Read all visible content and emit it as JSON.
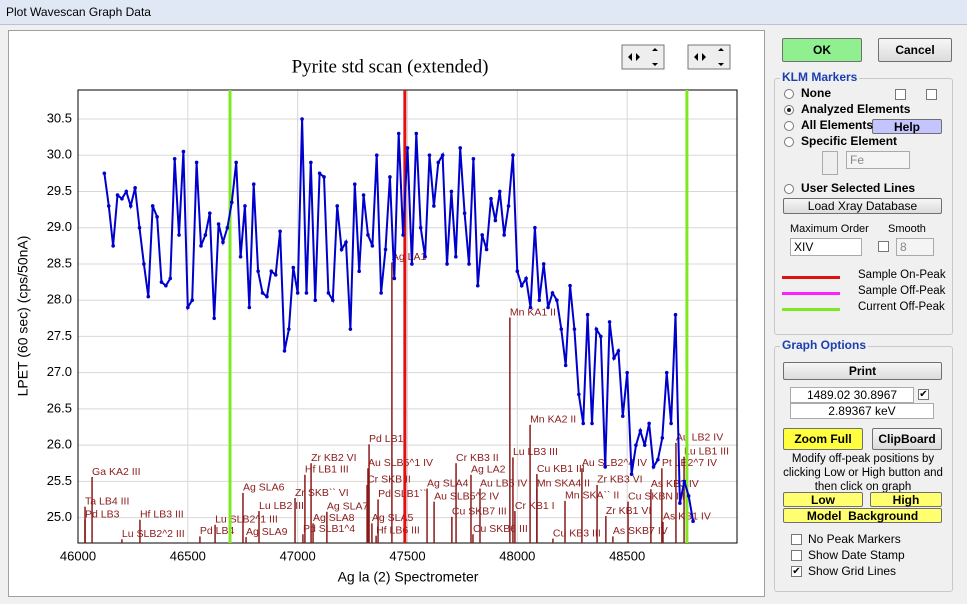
{
  "window_title": "Plot Wavescan Graph Data",
  "chart_data": {
    "type": "line",
    "title": "Pyrite std scan (extended)",
    "xlabel": "Ag la (2) Spectrometer",
    "ylabel": "LPET (60 sec) (cps/50nA)",
    "xlim": [
      46000,
      49000
    ],
    "ylim": [
      24.65,
      30.9
    ],
    "xticks": [
      46000,
      46500,
      47000,
      47500,
      48000,
      48500
    ],
    "yticks": [
      {
        "value": 25,
        "label": "25.0"
      },
      25.5,
      {
        "value": 26,
        "label": "26.0"
      },
      26.5,
      {
        "value": 27,
        "label": "27.0"
      },
      27.5,
      {
        "value": 28,
        "label": "28.0"
      },
      28.5,
      {
        "value": 29,
        "label": "29.0"
      },
      29.5,
      {
        "value": 30,
        "label": "30.0"
      },
      30.5
    ],
    "grid": true,
    "x": [
      46120,
      46140,
      46160,
      46180,
      46200,
      46220,
      46240,
      46260,
      46280,
      46300,
      46320,
      46340,
      46360,
      46380,
      46400,
      46420,
      46440,
      46460,
      46480,
      46500,
      46520,
      46540,
      46560,
      46580,
      46600,
      46620,
      46640,
      46660,
      46680,
      46700,
      46720,
      46740,
      46760,
      46780,
      46800,
      46820,
      46840,
      46860,
      46880,
      46900,
      46920,
      46940,
      46960,
      46980,
      47000,
      47020,
      47040,
      47060,
      47080,
      47100,
      47120,
      47140,
      47160,
      47180,
      47200,
      47220,
      47240,
      47260,
      47280,
      47300,
      47320,
      47340,
      47360,
      47380,
      47400,
      47420,
      47440,
      47460,
      47480,
      47500,
      47520,
      47540,
      47560,
      47580,
      47600,
      47620,
      47640,
      47660,
      47680,
      47700,
      47720,
      47740,
      47760,
      47780,
      47800,
      47820,
      47840,
      47860,
      47880,
      47900,
      47920,
      47940,
      47960,
      47980,
      48000,
      48020,
      48040,
      48060,
      48080,
      48100,
      48120,
      48140,
      48160,
      48180,
      48200,
      48220,
      48240,
      48260,
      48280,
      48300,
      48320,
      48340,
      48360,
      48380,
      48400,
      48420,
      48440,
      48460,
      48480,
      48500,
      48520,
      48540,
      48560,
      48580,
      48600,
      48620,
      48640,
      48660,
      48680,
      48700,
      48720,
      48740,
      48760,
      48780,
      48800
    ],
    "series": [
      {
        "color": "#0000cc",
        "values": [
          29.75,
          29.3,
          28.75,
          29.45,
          29.4,
          29.5,
          29.3,
          29.55,
          29.0,
          28.5,
          28.05,
          29.3,
          29.15,
          28.25,
          28.2,
          28.3,
          29.95,
          28.9,
          30.05,
          27.9,
          28.0,
          29.9,
          28.75,
          28.9,
          29.2,
          27.75,
          29.05,
          28.8,
          29.0,
          29.35,
          29.9,
          28.6,
          29.3,
          27.9,
          29.6,
          28.4,
          28.1,
          28.05,
          28.4,
          28.35,
          28.95,
          27.3,
          27.6,
          28.45,
          28.1,
          30.5,
          28.1,
          29.9,
          28.0,
          29.75,
          29.7,
          28.1,
          28.0,
          29.3,
          28.7,
          28.8,
          27.6,
          29.6,
          28.4,
          29.45,
          28.9,
          28.75,
          30.0,
          28.1,
          28.7,
          29.7,
          28.3,
          30.3,
          28.9,
          30.1,
          28.5,
          30.3,
          29.0,
          28.6,
          30.0,
          29.3,
          29.9,
          30.0,
          28.5,
          29.5,
          28.6,
          30.1,
          29.2,
          28.5,
          29.95,
          28.2,
          28.9,
          28.7,
          29.4,
          29.1,
          29.5,
          28.9,
          29.3,
          30.0,
          28.4,
          28.2,
          28.3,
          27.9,
          29.0,
          28.0,
          28.5,
          27.9,
          28.1,
          28.0,
          27.6,
          27.1,
          28.2,
          27.6,
          26.7,
          26.3,
          27.8,
          26.3,
          27.6,
          27.5,
          25.7,
          27.7,
          27.2,
          27.3,
          26.4,
          27.0,
          25.6,
          26.0,
          26.2,
          26.0,
          26.3,
          25.7,
          25.8,
          26.1,
          27.0,
          26.3,
          27.8,
          25.2,
          25.5,
          25.3,
          24.95
        ]
      }
    ],
    "peak_lines": [
      {
        "name": "Sample On-Peak",
        "color": "#e01010",
        "x": [
          47488
        ]
      },
      {
        "name": "Sample Off-Peak",
        "color": "#ff20ff",
        "x": []
      },
      {
        "name": "Current Off-Peak",
        "color": "#80e820",
        "x": [
          46692,
          48772
        ]
      }
    ],
    "marker_color": "#8b1a1a",
    "markers": [
      {
        "label": "Ga KA2 III",
        "x": 46064,
        "y": 25.63
      },
      {
        "label": "Ta LB4 III",
        "x": 46032,
        "y": 25.22
      },
      {
        "label": "Pd LB3",
        "x": 46032,
        "y": 25.04
      },
      {
        "label": "Hf LB3 III",
        "x": 46282,
        "y": 25.04
      },
      {
        "label": "Lu SLB2^2 III",
        "x": 46200,
        "y": 24.77
      },
      {
        "label": "Pd LB4",
        "x": 46555,
        "y": 24.81
      },
      {
        "label": "Lu SLB2^1 III",
        "x": 46624,
        "y": 24.97
      },
      {
        "label": "Ag SLA9",
        "x": 46765,
        "y": 24.8
      },
      {
        "label": "Ag SLA6",
        "x": 46751,
        "y": 25.41
      },
      {
        "label": "Lu LB2 III",
        "x": 46824,
        "y": 25.16
      },
      {
        "label": "Zr KB2 VI",
        "x": 47061,
        "y": 25.82
      },
      {
        "label": "Hf LB1 III",
        "x": 47033,
        "y": 25.66
      },
      {
        "label": "Zr SKB`` VI",
        "x": 46988,
        "y": 25.34
      },
      {
        "label": "Ag SLA7",
        "x": 47133,
        "y": 25.15
      },
      {
        "label": "Ag SLA8",
        "x": 47070,
        "y": 24.99
      },
      {
        "label": "Pd SLB1^4",
        "x": 47024,
        "y": 24.84
      },
      {
        "label": "Pd LB1",
        "x": 47325,
        "y": 26.08
      },
      {
        "label": "Au SLB5^1 IV",
        "x": 47320,
        "y": 25.75
      },
      {
        "label": "Cr SKB II",
        "x": 47316,
        "y": 25.52
      },
      {
        "label": "Pd SLB1``",
        "x": 47366,
        "y": 25.32
      },
      {
        "label": "Ag SLA5",
        "x": 47338,
        "y": 24.99
      },
      {
        "label": "Hf LB6 III",
        "x": 47357,
        "y": 24.82
      },
      {
        "label": "Ag LA1",
        "x": 47429,
        "y": 28.59
      },
      {
        "label": "Cr KB3 II",
        "x": 47721,
        "y": 25.82
      },
      {
        "label": "Ag LA2",
        "x": 47789,
        "y": 25.66
      },
      {
        "label": "Ag SLA4",
        "x": 47589,
        "y": 25.47
      },
      {
        "label": "Au LB5 IV",
        "x": 47830,
        "y": 25.47
      },
      {
        "label": "Au SLB5^2 IV",
        "x": 47621,
        "y": 25.29
      },
      {
        "label": "Cu SKB7 III",
        "x": 47702,
        "y": 25.08
      },
      {
        "label": "Cu SKB6 III",
        "x": 47798,
        "y": 24.84
      },
      {
        "label": "Lu LB3 III",
        "x": 47980,
        "y": 25.9
      },
      {
        "label": "Cu KB1 III",
        "x": 48089,
        "y": 25.67
      },
      {
        "label": "Mn SKA4 II",
        "x": 48089,
        "y": 25.47
      },
      {
        "label": "Mn SKA`` II",
        "x": 48217,
        "y": 25.3
      },
      {
        "label": "Cr KB1 I",
        "x": 47989,
        "y": 25.16
      },
      {
        "label": "Cu KB3 III",
        "x": 48162,
        "y": 24.78
      },
      {
        "label": "Mn KA1 II",
        "x": 47966,
        "y": 27.83
      },
      {
        "label": "Mn KA2 II",
        "x": 48058,
        "y": 26.35
      },
      {
        "label": "Au SLB2^4 IV",
        "x": 48294,
        "y": 25.75
      },
      {
        "label": "Zr KB3 VI",
        "x": 48363,
        "y": 25.52
      },
      {
        "label": "Cu SKBN III",
        "x": 48504,
        "y": 25.29
      },
      {
        "label": "Zr KB1 VI",
        "x": 48403,
        "y": 25.09
      },
      {
        "label": "As SKB7 IV",
        "x": 48435,
        "y": 24.81
      },
      {
        "label": "Au LB2 IV",
        "x": 48722,
        "y": 26.1
      },
      {
        "label": "Lu LB1 III",
        "x": 48759,
        "y": 25.91
      },
      {
        "label": "Pt LB2^7 IV",
        "x": 48658,
        "y": 25.75
      },
      {
        "label": "As KB3 IV",
        "x": 48608,
        "y": 25.46
      },
      {
        "label": "As KB1 IV",
        "x": 48663,
        "y": 25.01
      }
    ]
  },
  "panel": {
    "ok": "OK",
    "cancel": "Cancel",
    "klm_title": "KLM Markers",
    "klm_options": [
      {
        "label": "None",
        "selected": false
      },
      {
        "label": "Analyzed Elements",
        "selected": true
      },
      {
        "label": "All Elements",
        "selected": false
      },
      {
        "label": "Specific Element",
        "selected": false
      },
      {
        "label": "User Selected Lines",
        "selected": false
      }
    ],
    "help": "Help",
    "element": "Fe",
    "load_db": "Load Xray Database",
    "max_order_label": "Maximum Order",
    "smooth_label": "Smooth",
    "max_order": "XIV",
    "smooth": "8",
    "graph_title": "Graph Options",
    "print": "Print",
    "cursor_readout": "1489.02  30.8967",
    "cursor_checked": true,
    "energy_readout": "2.89367 keV",
    "zoom_full": "Zoom Full",
    "clipboard": "ClipBoard",
    "instructions": "Modify off-peak positions by clicking Low or High button and then click on graph",
    "low": "Low",
    "high": "High",
    "model_background": "Model  Background",
    "options": [
      {
        "label": "No Peak Markers",
        "checked": false
      },
      {
        "label": "Show Date Stamp",
        "checked": false
      },
      {
        "label": "Show Grid Lines",
        "checked": true
      }
    ]
  }
}
